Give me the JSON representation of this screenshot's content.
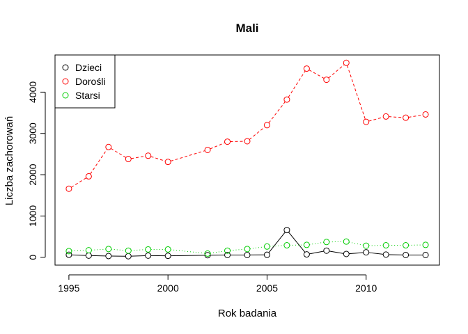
{
  "chart_data": {
    "type": "line",
    "title": "Mali",
    "xlabel": "Rok badania",
    "ylabel": "Liczba zachorowań",
    "xlim": [
      1994.3,
      2013.7
    ],
    "ylim": [
      -190,
      4900
    ],
    "x_ticks": [
      1995,
      2000,
      2005,
      2010
    ],
    "y_ticks": [
      0,
      1000,
      2000,
      3000,
      4000
    ],
    "legend_position": "top-left",
    "grid": false,
    "series": [
      {
        "name": "Dzieci",
        "color": "#000000",
        "line_style": "solid",
        "points": [
          {
            "x": 1995,
            "y": 60
          },
          {
            "x": 1996,
            "y": 40
          },
          {
            "x": 1997,
            "y": 30
          },
          {
            "x": 1998,
            "y": 25
          },
          {
            "x": 1999,
            "y": 40
          },
          {
            "x": 2000,
            "y": 35
          },
          {
            "x": 2002,
            "y": 50
          },
          {
            "x": 2003,
            "y": 55
          },
          {
            "x": 2004,
            "y": 55
          },
          {
            "x": 2005,
            "y": 60
          },
          {
            "x": 2006,
            "y": 660
          },
          {
            "x": 2007,
            "y": 70
          },
          {
            "x": 2008,
            "y": 160
          },
          {
            "x": 2009,
            "y": 80
          },
          {
            "x": 2010,
            "y": 120
          },
          {
            "x": 2011,
            "y": 65
          },
          {
            "x": 2012,
            "y": 55
          },
          {
            "x": 2013,
            "y": 55
          }
        ]
      },
      {
        "name": "Dorośli",
        "color": "#ff0000",
        "line_style": "dashed",
        "points": [
          {
            "x": 1995,
            "y": 1660
          },
          {
            "x": 1996,
            "y": 1960
          },
          {
            "x": 1997,
            "y": 2670
          },
          {
            "x": 1998,
            "y": 2380
          },
          {
            "x": 1999,
            "y": 2460
          },
          {
            "x": 2000,
            "y": 2310
          },
          {
            "x": 2002,
            "y": 2600
          },
          {
            "x": 2003,
            "y": 2800
          },
          {
            "x": 2004,
            "y": 2810
          },
          {
            "x": 2005,
            "y": 3200
          },
          {
            "x": 2006,
            "y": 3820
          },
          {
            "x": 2007,
            "y": 4570
          },
          {
            "x": 2008,
            "y": 4300
          },
          {
            "x": 2009,
            "y": 4710
          },
          {
            "x": 2010,
            "y": 3280
          },
          {
            "x": 2011,
            "y": 3410
          },
          {
            "x": 2012,
            "y": 3380
          },
          {
            "x": 2013,
            "y": 3460
          }
        ]
      },
      {
        "name": "Starsi",
        "color": "#00cd00",
        "line_style": "dotted",
        "points": [
          {
            "x": 1995,
            "y": 150
          },
          {
            "x": 1996,
            "y": 170
          },
          {
            "x": 1997,
            "y": 200
          },
          {
            "x": 1998,
            "y": 160
          },
          {
            "x": 1999,
            "y": 190
          },
          {
            "x": 2000,
            "y": 190
          },
          {
            "x": 2002,
            "y": 90
          },
          {
            "x": 2003,
            "y": 160
          },
          {
            "x": 2004,
            "y": 200
          },
          {
            "x": 2005,
            "y": 260
          },
          {
            "x": 2006,
            "y": 290
          },
          {
            "x": 2007,
            "y": 300
          },
          {
            "x": 2008,
            "y": 370
          },
          {
            "x": 2009,
            "y": 380
          },
          {
            "x": 2010,
            "y": 280
          },
          {
            "x": 2011,
            "y": 290
          },
          {
            "x": 2012,
            "y": 290
          },
          {
            "x": 2013,
            "y": 300
          }
        ]
      }
    ]
  }
}
